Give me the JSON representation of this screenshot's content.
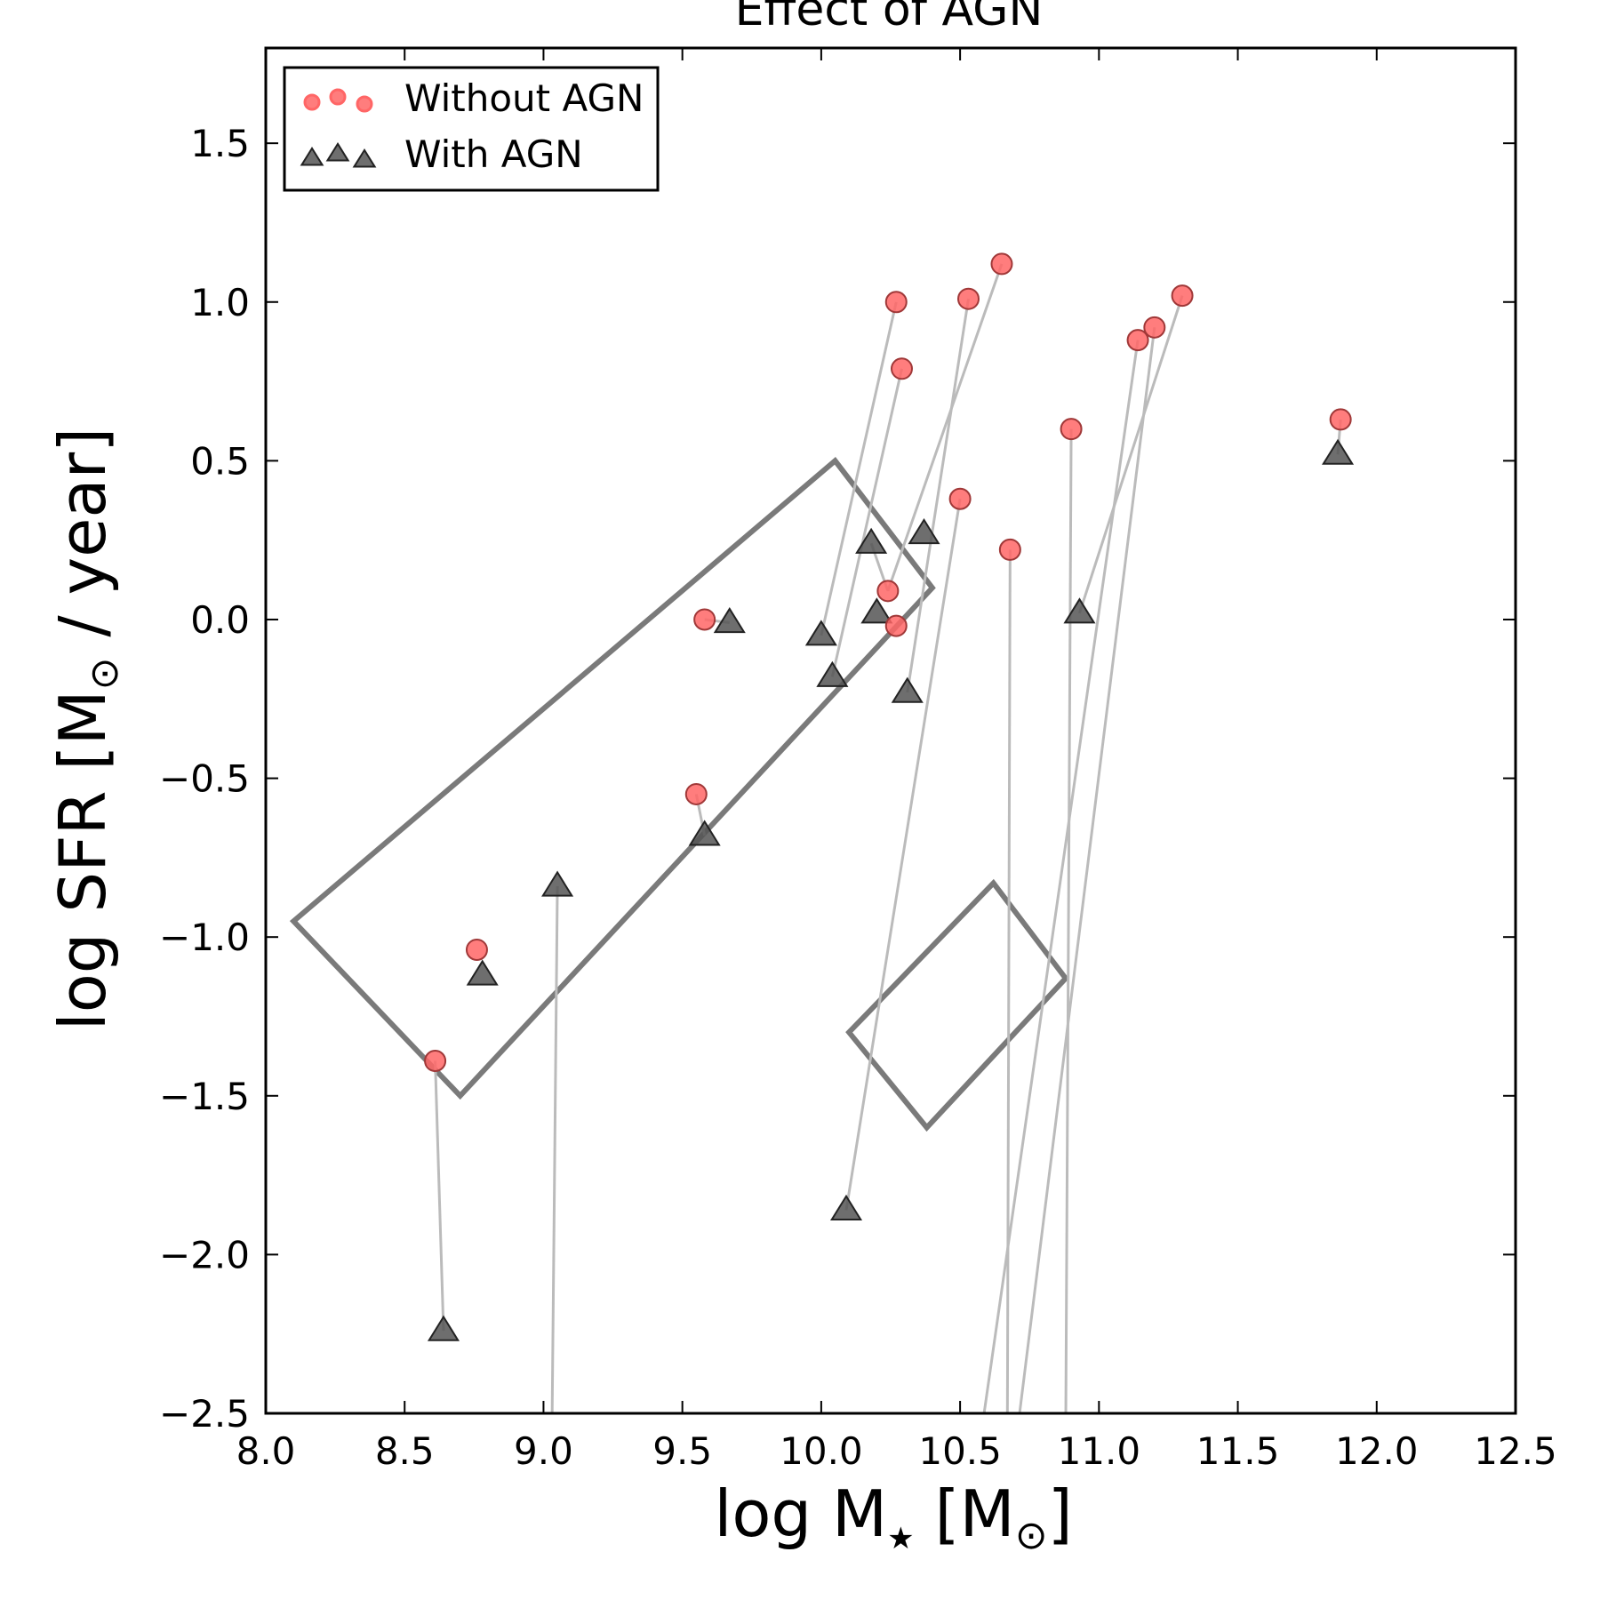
{
  "chart_data": {
    "type": "scatter",
    "title": "Effect of AGN",
    "xlabel": "log M",
    "xlabel_sub": "★",
    "xlabel_tail": " [M",
    "xlabel_end": "]",
    "ylabel": "log SFR [M",
    "ylabel_tail": " / year]",
    "sun_symbol": "⊙",
    "xlim": [
      8.0,
      12.5
    ],
    "ylim": [
      -2.5,
      1.8
    ],
    "xticks": [
      "8.0",
      "8.5",
      "9.0",
      "9.5",
      "10.0",
      "10.5",
      "11.0",
      "11.5",
      "12.0",
      "12.5"
    ],
    "xtick_values": [
      8.0,
      8.5,
      9.0,
      9.5,
      10.0,
      10.5,
      11.0,
      11.5,
      12.0,
      12.5
    ],
    "yticks": [
      "−2.5",
      "−2.0",
      "−1.5",
      "−1.0",
      "−0.5",
      "0.0",
      "0.5",
      "1.0",
      "1.5"
    ],
    "ytick_values": [
      -2.5,
      -2.0,
      -1.5,
      -1.0,
      -0.5,
      0.0,
      0.5,
      1.0,
      1.5
    ],
    "grid": false,
    "legend_position": "top-left",
    "colors": {
      "without": "#ff6666",
      "without_edge": "#a03838",
      "with": "#555555",
      "with_edge": "#222222",
      "link": "#bbbbbb",
      "box": "#7a7a7a"
    },
    "series": [
      {
        "name": "Without AGN",
        "marker": "circle",
        "points": [
          [
            8.61,
            -1.39
          ],
          [
            8.76,
            -1.04
          ],
          [
            9.55,
            -0.55
          ],
          [
            9.58,
            0.0
          ],
          [
            10.24,
            0.09
          ],
          [
            10.27,
            -0.02
          ],
          [
            10.27,
            1.0
          ],
          [
            10.29,
            0.79
          ],
          [
            10.5,
            0.38
          ],
          [
            10.53,
            1.01
          ],
          [
            10.65,
            1.12
          ],
          [
            10.68,
            0.22
          ],
          [
            10.9,
            0.6
          ],
          [
            11.14,
            0.88
          ],
          [
            11.2,
            0.92
          ],
          [
            11.3,
            1.02
          ],
          [
            11.87,
            0.63
          ]
        ]
      },
      {
        "name": "With AGN",
        "marker": "triangle",
        "points": [
          [
            8.64,
            -2.24
          ],
          [
            8.78,
            -1.12
          ],
          [
            9.05,
            -0.84
          ],
          [
            9.58,
            -0.68
          ],
          [
            9.67,
            -0.01
          ],
          [
            10.0,
            -0.05
          ],
          [
            10.04,
            -0.18
          ],
          [
            10.09,
            -1.86
          ],
          [
            10.18,
            0.24
          ],
          [
            10.2,
            0.02
          ],
          [
            10.31,
            -0.23
          ],
          [
            10.37,
            0.27
          ],
          [
            10.93,
            0.02
          ],
          [
            11.86,
            0.52
          ]
        ]
      }
    ],
    "links": [
      [
        [
          8.61,
          -1.39
        ],
        [
          8.64,
          -2.24
        ]
      ],
      [
        [
          9.05,
          -0.84
        ],
        [
          9.03,
          -2.6
        ]
      ],
      [
        [
          9.55,
          -0.55
        ],
        [
          9.58,
          -0.68
        ]
      ],
      [
        [
          9.58,
          0.0
        ],
        [
          9.67,
          -0.01
        ]
      ],
      [
        [
          10.27,
          1.0
        ],
        [
          10.0,
          -0.05
        ]
      ],
      [
        [
          10.29,
          0.79
        ],
        [
          10.04,
          -0.18
        ]
      ],
      [
        [
          10.65,
          1.12
        ],
        [
          10.24,
          0.09
        ]
      ],
      [
        [
          10.24,
          0.09
        ],
        [
          10.18,
          0.24
        ]
      ],
      [
        [
          10.53,
          1.01
        ],
        [
          10.31,
          -0.23
        ]
      ],
      [
        [
          10.5,
          0.38
        ],
        [
          10.09,
          -1.86
        ]
      ],
      [
        [
          10.68,
          0.22
        ],
        [
          10.67,
          -2.6
        ]
      ],
      [
        [
          10.9,
          0.6
        ],
        [
          10.88,
          -2.6
        ]
      ],
      [
        [
          11.14,
          0.88
        ],
        [
          10.57,
          -2.6
        ]
      ],
      [
        [
          11.2,
          0.92
        ],
        [
          10.7,
          -2.6
        ]
      ],
      [
        [
          11.3,
          1.02
        ],
        [
          10.93,
          0.02
        ]
      ],
      [
        [
          11.87,
          0.63
        ],
        [
          11.86,
          0.52
        ]
      ]
    ],
    "regions": [
      {
        "vertices": [
          [
            10.05,
            0.5
          ],
          [
            10.4,
            0.1
          ],
          [
            8.7,
            -1.5
          ],
          [
            8.1,
            -0.95
          ]
        ]
      },
      {
        "vertices": [
          [
            10.62,
            -0.83
          ],
          [
            10.88,
            -1.13
          ],
          [
            10.38,
            -1.6
          ],
          [
            10.1,
            -1.3
          ]
        ]
      }
    ]
  }
}
